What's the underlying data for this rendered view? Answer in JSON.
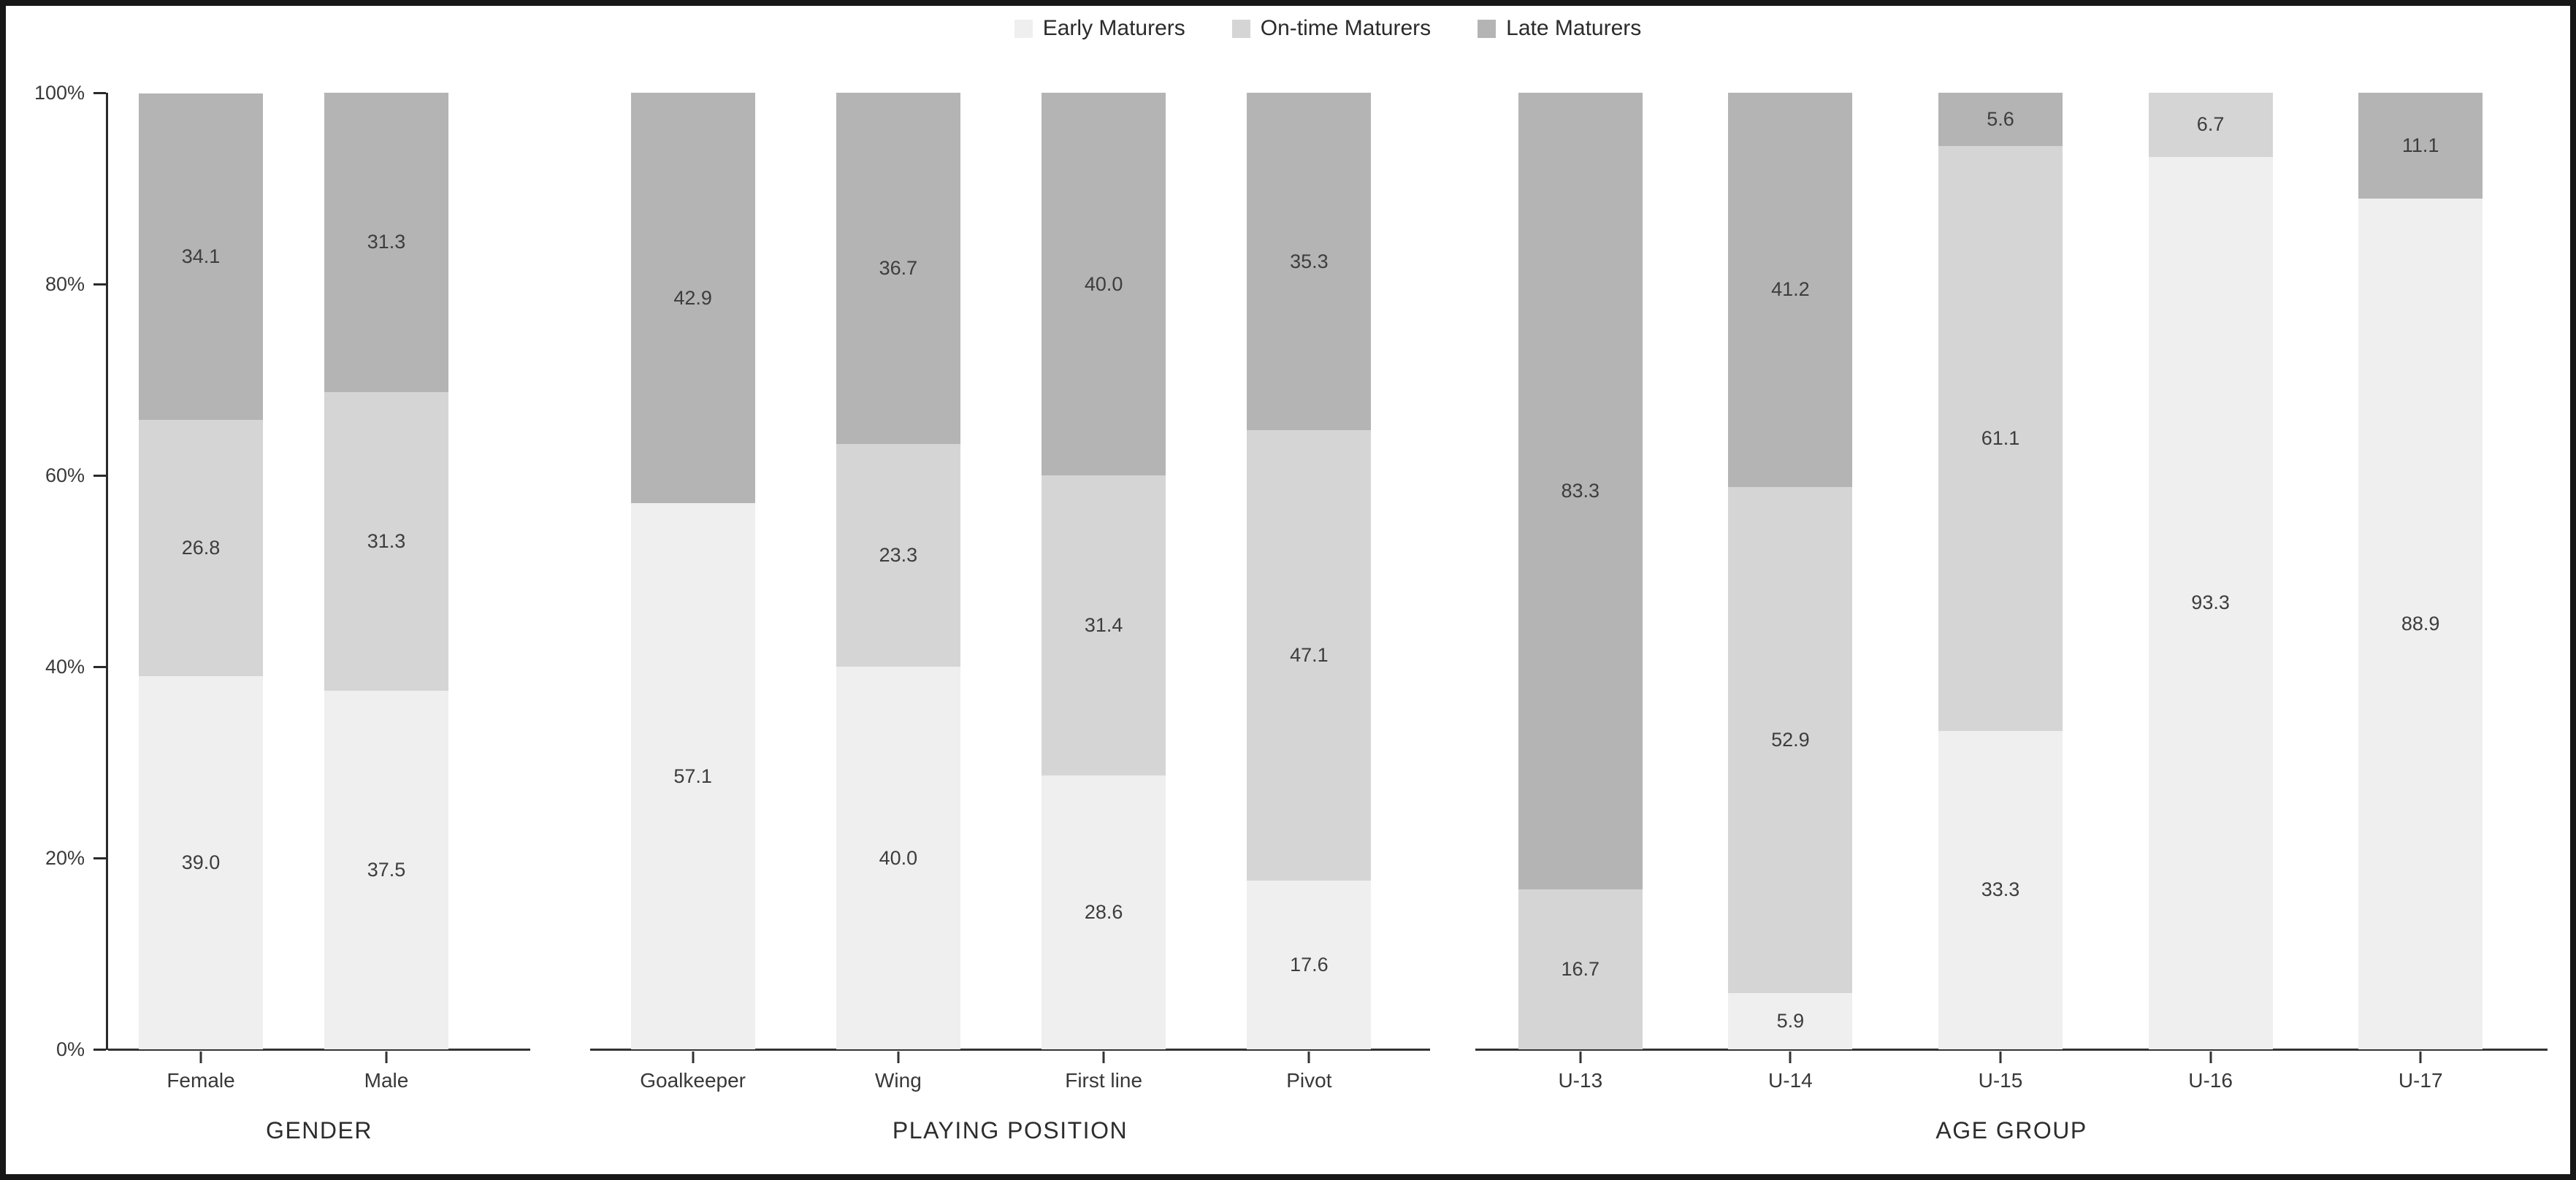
{
  "chart_data": {
    "type": "bar",
    "subtype": "percent-stacked-column",
    "title": "",
    "xlabel": "",
    "ylabel": "",
    "ylim": [
      0,
      100
    ],
    "grid": false,
    "legend_position": "top",
    "y_tick_labels": [
      "0%",
      "20%",
      "40%",
      "60%",
      "80%",
      "100%"
    ],
    "series_names": [
      "Early Maturers",
      "On-time Maturers",
      "Late Maturers"
    ],
    "series_colors": [
      "#efefef",
      "#d5d5d5",
      "#b4b4b4"
    ],
    "value_label_color": "#3d3d3d",
    "value_label_format": "one-decimal, omitted when value is 0",
    "groups": [
      {
        "label": "GENDER",
        "categories": [
          "Female",
          "Male"
        ],
        "series": [
          {
            "name": "Early Maturers",
            "values": [
              39.0,
              37.5
            ]
          },
          {
            "name": "On-time Maturers",
            "values": [
              26.8,
              31.3
            ]
          },
          {
            "name": "Late Maturers",
            "values": [
              34.1,
              31.3
            ]
          }
        ]
      },
      {
        "label": "PLAYING POSITION",
        "categories": [
          "Goalkeeper",
          "Wing",
          "First line",
          "Pivot"
        ],
        "series": [
          {
            "name": "Early Maturers",
            "values": [
              57.1,
              40.0,
              28.6,
              17.6
            ]
          },
          {
            "name": "On-time Maturers",
            "values": [
              0,
              23.3,
              31.4,
              47.1
            ]
          },
          {
            "name": "Late Maturers",
            "values": [
              42.9,
              36.7,
              40.0,
              35.3
            ]
          }
        ]
      },
      {
        "label": "AGE GROUP",
        "categories": [
          "U-13",
          "U-14",
          "U-15",
          "U-16",
          "U-17"
        ],
        "series": [
          {
            "name": "Early Maturers",
            "values": [
              0,
              5.9,
              33.3,
              93.3,
              88.9
            ]
          },
          {
            "name": "On-time Maturers",
            "values": [
              16.7,
              52.9,
              61.1,
              6.7,
              0
            ]
          },
          {
            "name": "Late Maturers",
            "values": [
              83.3,
              41.2,
              5.6,
              0,
              11.1
            ]
          }
        ]
      }
    ]
  }
}
